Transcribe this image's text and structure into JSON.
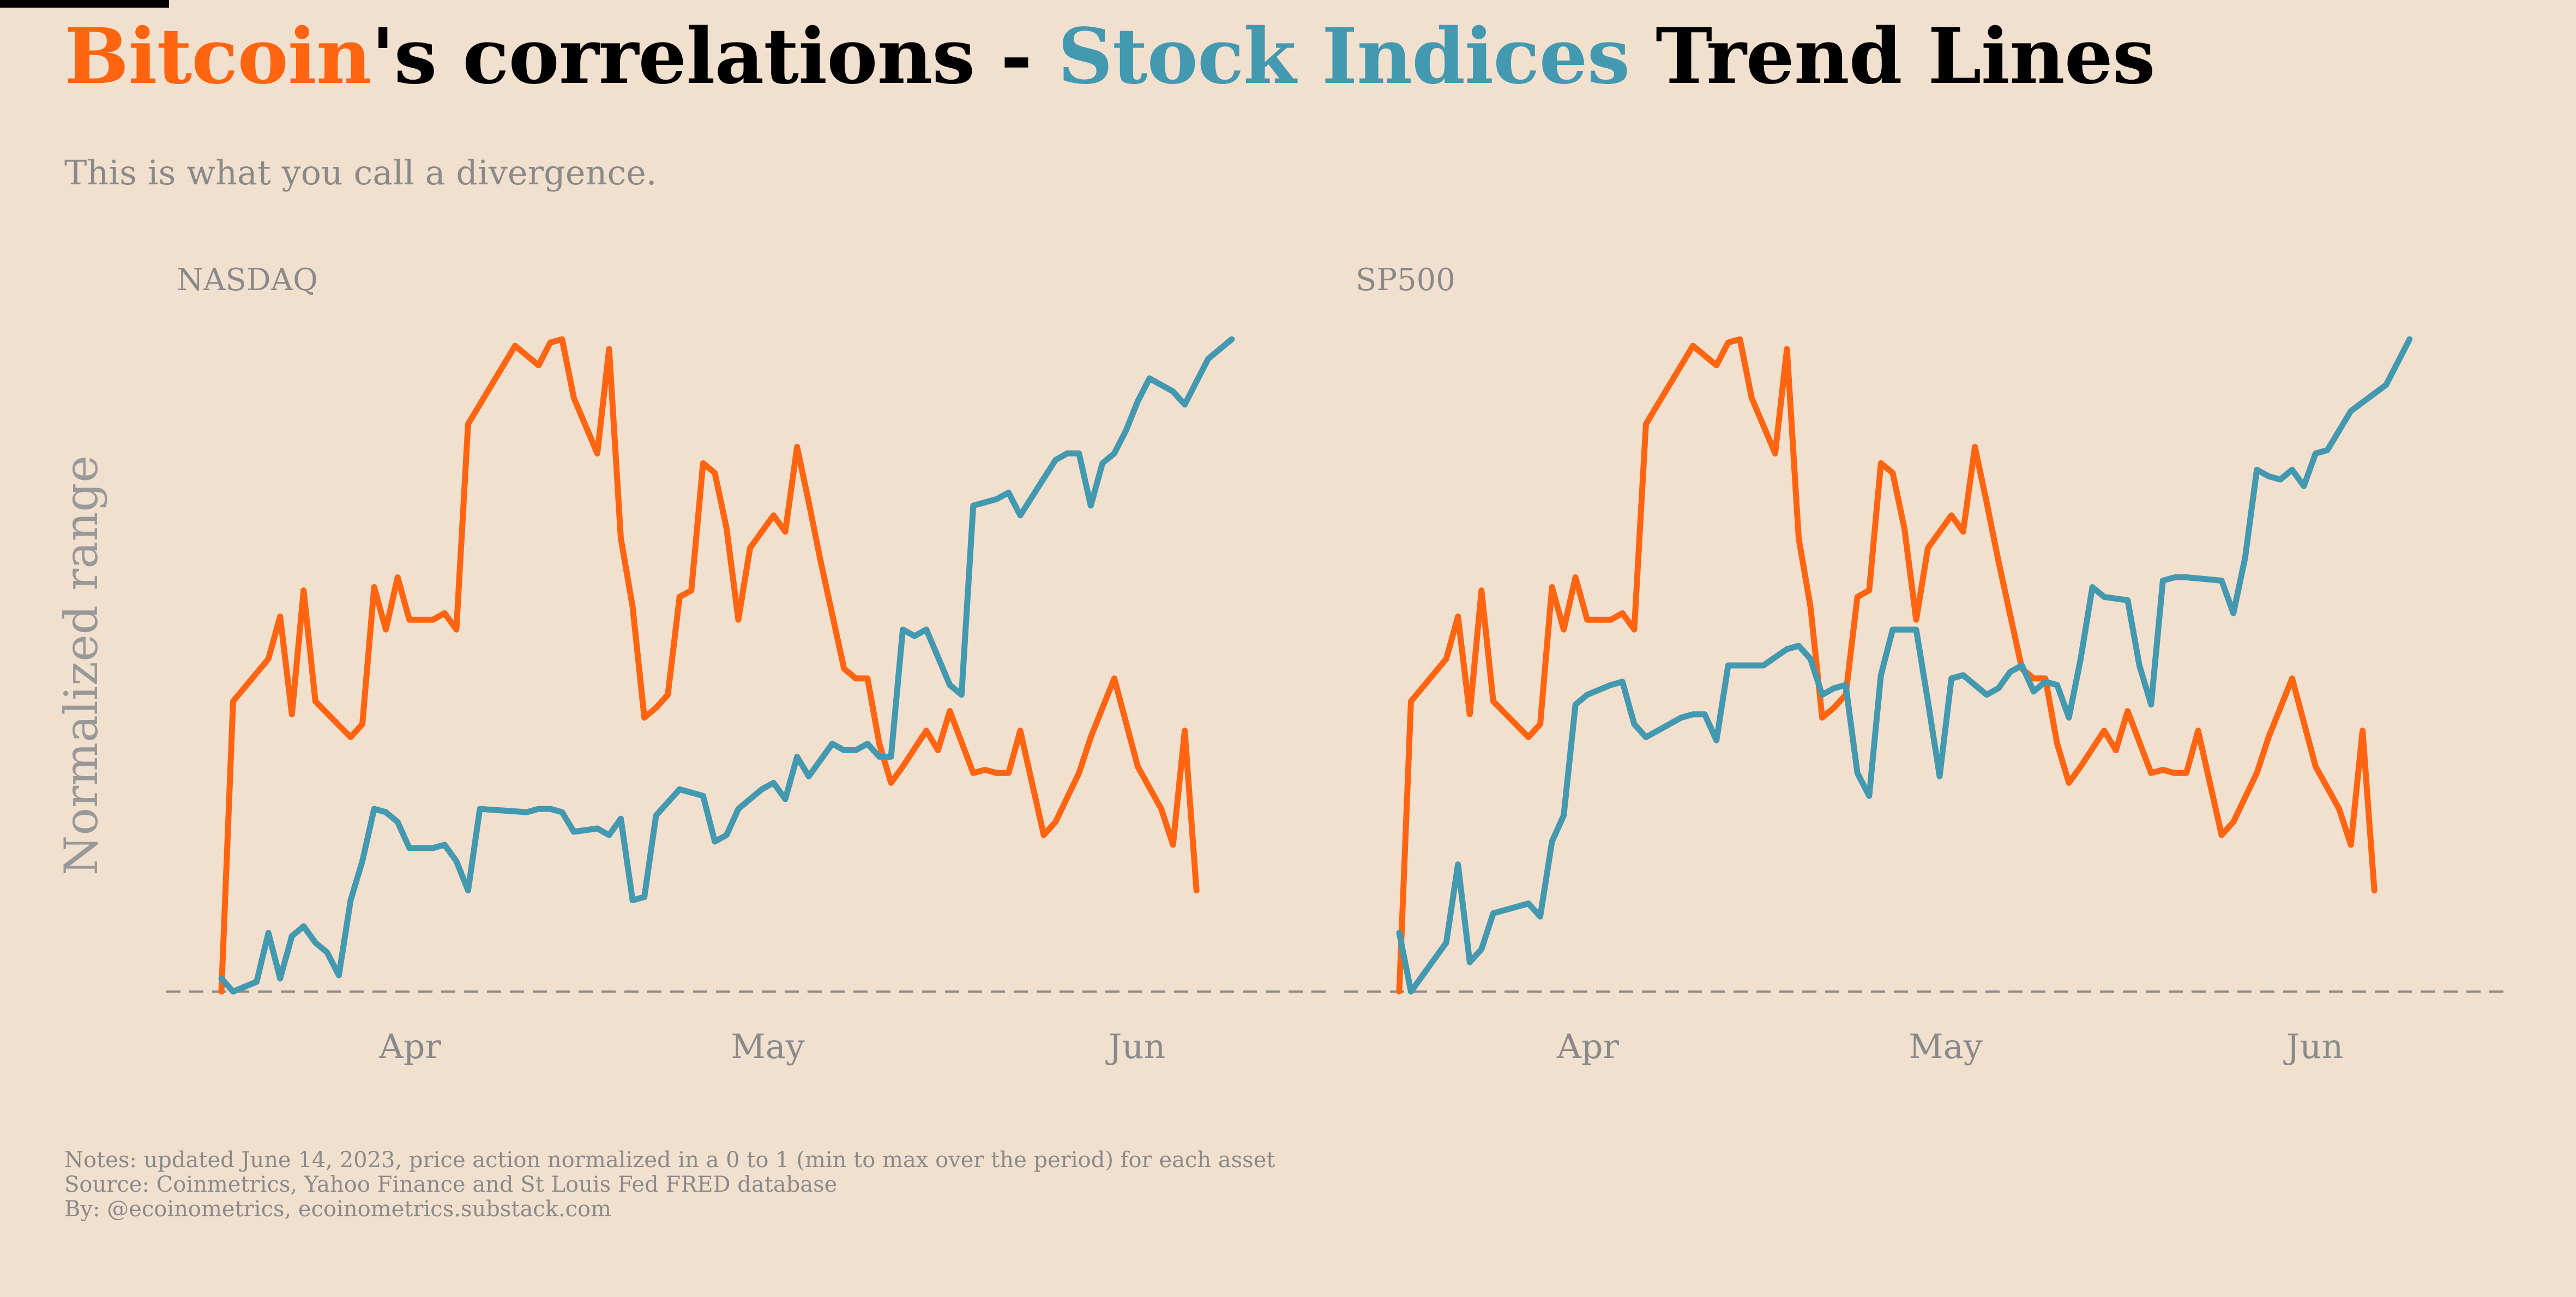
{
  "title": {
    "part1": "Bitcoin",
    "part2": "'s correlations - ",
    "part3": "Stock Indices",
    "part4": " Trend Lines"
  },
  "subtitle": "This is what you call a divergence.",
  "notes": {
    "line1": "Notes: updated June 14, 2023, price action normalized in a 0 to 1 (min to max over the period) for each asset",
    "line2": "Source: Coinmetrics, Yahoo Finance and St Louis Fed FRED database",
    "line3": "By: @ecoinometrics, ecoinometrics.substack.com"
  },
  "colors": {
    "bitcoin": "#ff6411",
    "stocks": "#4399b0",
    "background": "#f2e0cf",
    "muted": "#8a8a8a"
  },
  "chart_data": [
    {
      "type": "line",
      "title": "NASDAQ",
      "xlabel": "",
      "ylabel": "Normalized range",
      "x_ticks": [
        {
          "label": "Apr",
          "x": 18
        },
        {
          "label": "May",
          "x": 48
        },
        {
          "label": "Jun",
          "x": 79
        }
      ],
      "xlim": [
        0,
        90
      ],
      "ylim": [
        0,
        1
      ],
      "baseline": 0,
      "series": [
        {
          "name": "Bitcoin",
          "color": "#ff6411",
          "x": [
            0,
            1,
            4,
            5,
            6,
            7,
            8,
            11,
            12,
            13,
            14,
            15,
            16,
            18,
            19,
            20,
            21,
            25,
            27,
            28,
            29,
            30,
            32,
            33,
            34,
            35,
            36,
            37,
            38,
            39,
            40,
            41,
            42,
            43,
            44,
            45,
            47,
            48,
            49,
            50,
            51,
            53,
            54,
            55,
            56,
            57,
            58,
            60,
            61,
            62,
            64,
            65,
            66,
            67,
            68,
            70,
            71,
            73,
            74,
            76,
            78,
            80,
            81,
            82,
            83
          ],
          "y": [
            0,
            0.445,
            0.51,
            0.575,
            0.425,
            0.615,
            0.445,
            0.39,
            0.41,
            0.62,
            0.555,
            0.635,
            0.57,
            0.57,
            0.58,
            0.555,
            0.87,
            0.99,
            0.96,
            0.995,
            1,
            0.91,
            0.825,
            0.985,
            0.695,
            0.59,
            0.42,
            0.435,
            0.455,
            0.605,
            0.615,
            0.81,
            0.795,
            0.71,
            0.57,
            0.68,
            0.73,
            0.705,
            0.835,
            0.75,
            0.66,
            0.495,
            0.48,
            0.48,
            0.38,
            0.32,
            0.345,
            0.4,
            0.37,
            0.43,
            0.335,
            0.34,
            0.335,
            0.335,
            0.4,
            0.24,
            0.26,
            0.335,
            0.39,
            0.48,
            0.345,
            0.28,
            0.225,
            0.4,
            0.155
          ]
        },
        {
          "name": "NASDAQ",
          "color": "#4399b0",
          "x": [
            0,
            1,
            3,
            4,
            5,
            6,
            7,
            8,
            9,
            10,
            11,
            12,
            13,
            14,
            15,
            16,
            18,
            19,
            20,
            21,
            22,
            26,
            27,
            28,
            29,
            30,
            32,
            33,
            34,
            35,
            36,
            37,
            39,
            40,
            41,
            42,
            43,
            44,
            46,
            47,
            48,
            49,
            50,
            52,
            53,
            54,
            55,
            56,
            57,
            58,
            59,
            60,
            62,
            63,
            64,
            66,
            67,
            68,
            71,
            72,
            73,
            74,
            75,
            76,
            77,
            78,
            79,
            81,
            82,
            84,
            86
          ],
          "y": [
            0.02,
            0,
            0.015,
            0.09,
            0.02,
            0.085,
            0.1,
            0.075,
            0.06,
            0.025,
            0.14,
            0.2,
            0.28,
            0.275,
            0.26,
            0.22,
            0.22,
            0.225,
            0.2,
            0.155,
            0.28,
            0.275,
            0.28,
            0.28,
            0.275,
            0.245,
            0.25,
            0.24,
            0.265,
            0.14,
            0.145,
            0.27,
            0.31,
            0.305,
            0.3,
            0.23,
            0.24,
            0.28,
            0.31,
            0.32,
            0.295,
            0.36,
            0.33,
            0.38,
            0.37,
            0.37,
            0.38,
            0.36,
            0.36,
            0.555,
            0.545,
            0.555,
            0.47,
            0.455,
            0.745,
            0.755,
            0.765,
            0.73,
            0.815,
            0.825,
            0.825,
            0.745,
            0.81,
            0.825,
            0.86,
            0.905,
            0.94,
            0.92,
            0.9,
            0.97,
            1
          ]
        }
      ]
    },
    {
      "type": "line",
      "title": "SP500",
      "xlabel": "",
      "ylabel": "",
      "x_ticks": [
        {
          "label": "Apr",
          "x": 18
        },
        {
          "label": "May",
          "x": 48
        },
        {
          "label": "Jun",
          "x": 79
        }
      ],
      "xlim": [
        0,
        90
      ],
      "ylim": [
        0,
        1
      ],
      "baseline": 0,
      "series": [
        {
          "name": "Bitcoin",
          "color": "#ff6411",
          "x": [
            0,
            1,
            4,
            5,
            6,
            7,
            8,
            11,
            12,
            13,
            14,
            15,
            16,
            18,
            19,
            20,
            21,
            25,
            27,
            28,
            29,
            30,
            32,
            33,
            34,
            35,
            36,
            37,
            38,
            39,
            40,
            41,
            42,
            43,
            44,
            45,
            47,
            48,
            49,
            50,
            51,
            53,
            54,
            55,
            56,
            57,
            58,
            60,
            61,
            62,
            64,
            65,
            66,
            67,
            68,
            70,
            71,
            73,
            74,
            76,
            78,
            80,
            81,
            82,
            83
          ],
          "y": [
            0,
            0.445,
            0.51,
            0.575,
            0.425,
            0.615,
            0.445,
            0.39,
            0.41,
            0.62,
            0.555,
            0.635,
            0.57,
            0.57,
            0.58,
            0.555,
            0.87,
            0.99,
            0.96,
            0.995,
            1,
            0.91,
            0.825,
            0.985,
            0.695,
            0.59,
            0.42,
            0.435,
            0.455,
            0.605,
            0.615,
            0.81,
            0.795,
            0.71,
            0.57,
            0.68,
            0.73,
            0.705,
            0.835,
            0.75,
            0.66,
            0.495,
            0.48,
            0.48,
            0.38,
            0.32,
            0.345,
            0.4,
            0.37,
            0.43,
            0.335,
            0.34,
            0.335,
            0.335,
            0.4,
            0.24,
            0.26,
            0.335,
            0.39,
            0.48,
            0.345,
            0.28,
            0.225,
            0.4,
            0.155
          ]
        },
        {
          "name": "SP500",
          "color": "#4399b0",
          "x": [
            0,
            1,
            4,
            5,
            6,
            7,
            8,
            11,
            12,
            13,
            14,
            15,
            16,
            18,
            19,
            20,
            21,
            24,
            25,
            26,
            27,
            28,
            31,
            33,
            34,
            35,
            36,
            37,
            38,
            39,
            40,
            41,
            42,
            44,
            45,
            46,
            47,
            48,
            50,
            51,
            52,
            53,
            54,
            55,
            56,
            57,
            58,
            59,
            60,
            62,
            63,
            64,
            65,
            66,
            67,
            70,
            71,
            72,
            73,
            74,
            75,
            76,
            77,
            78,
            79,
            80,
            81,
            84,
            86
          ],
          "y": [
            0.09,
            0,
            0.075,
            0.195,
            0.045,
            0.065,
            0.12,
            0.135,
            0.115,
            0.23,
            0.27,
            0.44,
            0.455,
            0.47,
            0.475,
            0.41,
            0.39,
            0.42,
            0.425,
            0.425,
            0.385,
            0.5,
            0.5,
            0.525,
            0.53,
            0.51,
            0.455,
            0.465,
            0.47,
            0.335,
            0.3,
            0.485,
            0.555,
            0.555,
            0.445,
            0.33,
            0.48,
            0.485,
            0.455,
            0.465,
            0.49,
            0.5,
            0.46,
            0.475,
            0.47,
            0.42,
            0.51,
            0.62,
            0.605,
            0.6,
            0.5,
            0.44,
            0.63,
            0.635,
            0.635,
            0.63,
            0.58,
            0.665,
            0.8,
            0.79,
            0.785,
            0.8,
            0.775,
            0.825,
            0.83,
            0.86,
            0.89,
            0.93,
            1
          ]
        }
      ]
    }
  ]
}
